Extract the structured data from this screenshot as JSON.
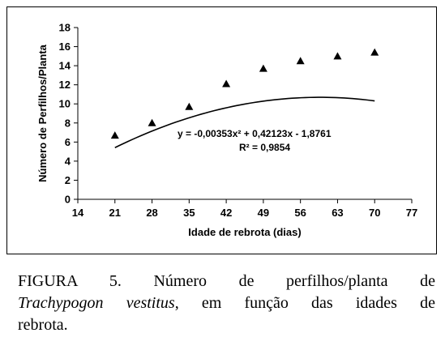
{
  "chart_data": {
    "type": "scatter",
    "xlabel": "Idade de rebrota (dias)",
    "ylabel": "Número de Perfilhos/Planta",
    "xlim": [
      14,
      77
    ],
    "ylim": [
      0,
      18
    ],
    "xticks": [
      14,
      21,
      28,
      35,
      42,
      49,
      56,
      63,
      70,
      77
    ],
    "yticks": [
      0,
      2,
      4,
      6,
      8,
      10,
      12,
      14,
      16,
      18
    ],
    "points": {
      "x": [
        21,
        28,
        35,
        42,
        49,
        56,
        63,
        70
      ],
      "y": [
        6.7,
        8.0,
        9.7,
        12.1,
        13.7,
        14.5,
        15.0,
        15.4
      ]
    },
    "marker": "triangle",
    "fit": {
      "type": "quadratic",
      "a": -0.00353,
      "b": 0.42123,
      "c": -1.8761,
      "x_range": [
        21,
        70
      ]
    },
    "equation_text": "y = -0,00353x² + 0,42123x - 1,8761",
    "r2_text": "R² = 0,9854",
    "grid": false
  },
  "caption": {
    "line1": "FIGURA 5. Número de perfilhos/planta de",
    "species": "Trachypogon vestitus",
    "line2_rest": ", em função das idades de",
    "line3": "rebrota."
  }
}
